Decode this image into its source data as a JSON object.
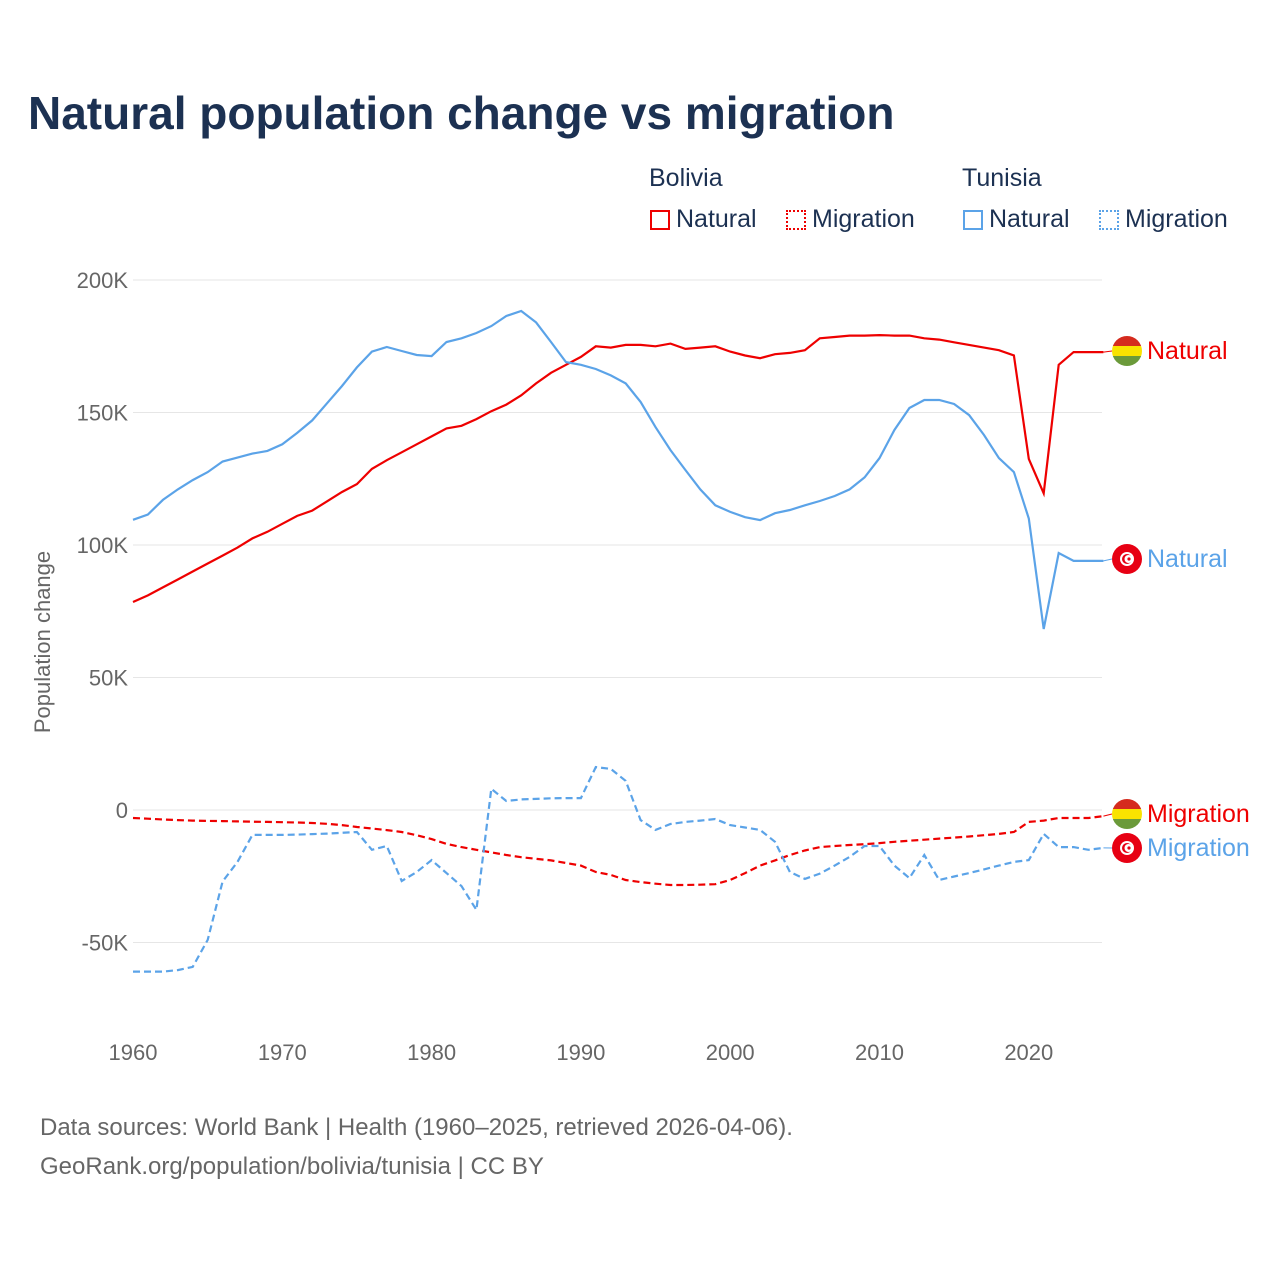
{
  "chart_data": {
    "type": "line",
    "title": "Natural population change vs migration",
    "ylabel": "Population change",
    "xlabel": "",
    "ylim": [
      -70000,
      200000
    ],
    "xlim": [
      1960,
      2025
    ],
    "y_ticks": [
      {
        "v": 200000,
        "label": "200K"
      },
      {
        "v": 150000,
        "label": "150K"
      },
      {
        "v": 100000,
        "label": "100K"
      },
      {
        "v": 50000,
        "label": "50K"
      },
      {
        "v": 0,
        "label": "0"
      },
      {
        "v": -50000,
        "label": "-50K"
      }
    ],
    "x_ticks": [
      1960,
      1970,
      1980,
      1990,
      2000,
      2010,
      2020
    ],
    "grid": true,
    "legend": {
      "placement": "top-right",
      "groups": [
        {
          "name": "Bolivia",
          "items": [
            "Natural",
            "Migration"
          ]
        },
        {
          "name": "Tunisia",
          "items": [
            "Natural",
            "Migration"
          ]
        }
      ]
    },
    "x_start": 1960,
    "series": [
      {
        "name": "Bolivia Natural",
        "country": "Bolivia",
        "kind": "Natural",
        "color": "#ee0000",
        "dash": false,
        "end_label": "Natural",
        "values": [
          78.5,
          81,
          84,
          87,
          90,
          93,
          96,
          99,
          102.5,
          105,
          108,
          111,
          113,
          116.5,
          120,
          123,
          128.7,
          132,
          135,
          138,
          141,
          144,
          145,
          147.5,
          150.5,
          153,
          156.5,
          161,
          165,
          168,
          171,
          175,
          174.5,
          175.5,
          175.5,
          175,
          176,
          174,
          174.5,
          175,
          173,
          171.5,
          170.5,
          172,
          172.5,
          173.5,
          178,
          178.5,
          179,
          179,
          179.2,
          179,
          179,
          178,
          177.5,
          176.5,
          175.5,
          174.5,
          173.5,
          171.5,
          132.5,
          119.5,
          168,
          172.8,
          172.8,
          172.8
        ]
      },
      {
        "name": "Tunisia Natural",
        "country": "Tunisia",
        "kind": "Natural",
        "color": "#5ba3e8",
        "dash": false,
        "end_label": "Natural",
        "values": [
          109.5,
          111.5,
          117,
          121,
          124.5,
          127.5,
          131.5,
          133,
          134.5,
          135.5,
          138,
          142.3,
          147,
          153.5,
          160,
          167,
          173,
          174.7,
          173.2,
          171.7,
          171.3,
          176.6,
          178,
          180,
          182.6,
          186.4,
          188.3,
          184,
          176.6,
          169,
          168,
          166.4,
          164,
          161,
          154,
          144.5,
          135.8,
          128.3,
          121,
          115,
          112.5,
          110.5,
          109.4,
          112,
          113.2,
          115,
          116.6,
          118.5,
          121,
          125.5,
          132.8,
          143.4,
          151.7,
          154.7,
          154.7,
          153.2,
          149,
          141.5,
          132.8,
          127.5,
          110,
          68.3,
          97,
          94,
          94,
          94
        ]
      },
      {
        "name": "Bolivia Migration",
        "country": "Bolivia",
        "kind": "Migration",
        "color": "#ee0000",
        "dash": true,
        "end_label": "Migration",
        "values": [
          -3,
          -3.3,
          -3.6,
          -3.8,
          -4,
          -4.1,
          -4.2,
          -4.3,
          -4.4,
          -4.5,
          -4.6,
          -4.7,
          -4.9,
          -5.2,
          -5.7,
          -6.4,
          -7,
          -7.6,
          -8.3,
          -9.5,
          -11,
          -12.8,
          -14,
          -15,
          -16,
          -17,
          -17.8,
          -18.4,
          -19,
          -20,
          -21,
          -23.4,
          -24.5,
          -26.4,
          -27.2,
          -27.8,
          -28.3,
          -28.3,
          -28.2,
          -28,
          -26.4,
          -23.8,
          -21,
          -19,
          -17,
          -15.3,
          -14,
          -13.6,
          -13.2,
          -12.9,
          -12.5,
          -12,
          -11.6,
          -11.2,
          -10.8,
          -10.4,
          -10,
          -9.5,
          -9,
          -8.3,
          -4.5,
          -4,
          -3,
          -3,
          -3,
          -2.3
        ]
      },
      {
        "name": "Tunisia Migration",
        "country": "Tunisia",
        "kind": "Migration",
        "color": "#5ba3e8",
        "dash": true,
        "end_label": "Migration",
        "values": [
          -61,
          -61,
          -61,
          -60.4,
          -59.2,
          -49,
          -27,
          -19.6,
          -9.4,
          -9.4,
          -9.4,
          -9.3,
          -9.1,
          -8.9,
          -8.6,
          -8.3,
          -15,
          -13.6,
          -26.8,
          -23.4,
          -18.9,
          -23.8,
          -28.7,
          -37.7,
          8,
          3.4,
          4,
          4.2,
          4.4,
          4.5,
          4.5,
          16.2,
          15.5,
          11,
          -3.8,
          -7.5,
          -5.3,
          -4.5,
          -4,
          -3.4,
          -5.7,
          -6.6,
          -7.5,
          -12,
          -23.4,
          -26,
          -24,
          -21,
          -17.7,
          -13.6,
          -13.6,
          -21,
          -25.7,
          -17,
          -26.4,
          -25.1,
          -23.8,
          -22.4,
          -21,
          -19.6,
          -18.9,
          -9,
          -14,
          -14,
          -15,
          -14.3
        ]
      }
    ],
    "value_unit": "thousands"
  },
  "legend": {
    "bolivia": "Bolivia",
    "tunisia": "Tunisia",
    "natural": "Natural",
    "migration": "Migration"
  },
  "source_line1": "Data sources: World Bank | Health (1960–2025, retrieved 2026-04-06).",
  "source_line2": "GeoRank.org/population/bolivia/tunisia | CC BY",
  "colors": {
    "bolivia": "#ee0000",
    "tunisia": "#5ba3e8",
    "title": "#1c3152"
  }
}
